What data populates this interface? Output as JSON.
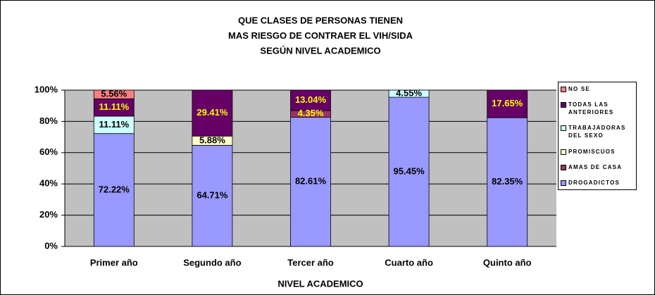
{
  "chart_data": {
    "type": "stacked_bar",
    "title": [
      "QUE CLASES DE PERSONAS TIENEN",
      "MAS RIESGO DE CONTRAER EL VIH/SIDA",
      "SEGÚN NIVEL ACADEMICO"
    ],
    "x_label": "NIVEL ACADEMICO",
    "categories": [
      "Primer año",
      "Segundo año",
      "Tercer año",
      "Cuarto año",
      "Quinto año"
    ],
    "series": [
      {
        "name": "DROGADICTOS",
        "color": "#9999ff",
        "label_color": "#000000",
        "values": [
          72.22,
          64.71,
          82.61,
          95.45,
          82.35
        ],
        "value_labels": [
          "72.22%",
          "64.71%",
          "82.61%",
          "95.45%",
          "82.35%"
        ]
      },
      {
        "name": "AMAS DE CASA",
        "color": "#993366",
        "label_color": "#ffff00",
        "values": [
          0,
          0,
          4.35,
          0,
          0
        ],
        "value_labels": [
          null,
          null,
          "4.35%",
          null,
          null
        ]
      },
      {
        "name": "PROMISCUOS",
        "color": "#ffffcc",
        "label_color": "#000000",
        "values": [
          0,
          5.88,
          0,
          0,
          0
        ],
        "value_labels": [
          null,
          "5.88%",
          null,
          null,
          null
        ]
      },
      {
        "name": "TRABAJADORAS DEL SEXO",
        "color": "#ccffff",
        "label_color": "#000000",
        "values": [
          11.11,
          0,
          0,
          4.55,
          0
        ],
        "value_labels": [
          "11.11%",
          null,
          null,
          "4.55%",
          null
        ]
      },
      {
        "name": "TODAS LAS ANTERIORES",
        "color": "#660066",
        "label_color": "#ffff00",
        "values": [
          11.11,
          29.41,
          13.04,
          0,
          17.65
        ],
        "value_labels": [
          "11.11%",
          "29.41%",
          "13.04%",
          null,
          "17.65%"
        ]
      },
      {
        "name": "NO SE",
        "color": "#ff8080",
        "label_color": "#000000",
        "values": [
          5.56,
          0,
          0,
          0,
          0
        ],
        "value_labels": [
          "5.56%",
          null,
          null,
          null,
          null
        ]
      }
    ],
    "ylim": [
      0,
      100
    ],
    "yticks": [
      {
        "value": 0,
        "label": "0%"
      },
      {
        "value": 20,
        "label": "20%"
      },
      {
        "value": 40,
        "label": "40%"
      },
      {
        "value": 60,
        "label": "60%"
      },
      {
        "value": 80,
        "label": "80%"
      },
      {
        "value": 100,
        "label": "100%"
      }
    ],
    "grid": true,
    "legend": "right",
    "plot_background": "#c0c0c0"
  }
}
